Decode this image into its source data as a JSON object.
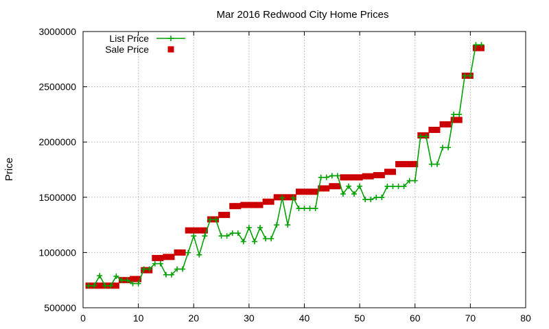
{
  "chart_data": {
    "type": "line",
    "title": "Mar 2016 Redwood City Home Prices",
    "xlabel": "",
    "ylabel": "Price",
    "xlim": [
      0,
      80
    ],
    "ylim": [
      500000,
      3000000
    ],
    "x_ticks": [
      0,
      10,
      20,
      30,
      40,
      50,
      60,
      70,
      80
    ],
    "y_ticks": [
      500000,
      1000000,
      1500000,
      2000000,
      2500000,
      3000000
    ],
    "x_tick_labels": [
      "0",
      "10",
      "20",
      "30",
      "40",
      "50",
      "60",
      "70",
      "80"
    ],
    "y_tick_labels": [
      "500000",
      "1000000",
      "1500000",
      "2000000",
      "2500000",
      "3000000"
    ],
    "grid": true,
    "legend_position": "top-left",
    "x": [
      1,
      2,
      3,
      4,
      5,
      6,
      7,
      8,
      9,
      10,
      11,
      12,
      13,
      14,
      15,
      16,
      17,
      18,
      19,
      20,
      21,
      22,
      23,
      24,
      25,
      26,
      27,
      28,
      29,
      30,
      31,
      32,
      33,
      34,
      35,
      36,
      37,
      38,
      39,
      40,
      41,
      42,
      43,
      44,
      45,
      46,
      47,
      48,
      49,
      50,
      51,
      52,
      53,
      54,
      55,
      56,
      57,
      58,
      59,
      60,
      61,
      62,
      63,
      64,
      65,
      66,
      67,
      68,
      69,
      70,
      71,
      72
    ],
    "series": [
      {
        "name": "List Price",
        "color": "#00a000",
        "marker": "plus",
        "values": [
          699000,
          699000,
          790000,
          699000,
          699000,
          785000,
          749000,
          749000,
          719000,
          719000,
          850000,
          850000,
          899000,
          899000,
          799000,
          799000,
          850000,
          850000,
          999000,
          1150000,
          979000,
          1150000,
          1298000,
          1298000,
          1150000,
          1150000,
          1175000,
          1175000,
          1099000,
          1225000,
          1099000,
          1225000,
          1125000,
          1125000,
          1250000,
          1495000,
          1250000,
          1495000,
          1399000,
          1399000,
          1399000,
          1399000,
          1680000,
          1680000,
          1695000,
          1695000,
          1530000,
          1600000,
          1530000,
          1600000,
          1480000,
          1480000,
          1499000,
          1499000,
          1599000,
          1599000,
          1599000,
          1599000,
          1650000,
          1650000,
          2050000,
          2050000,
          1799000,
          1799000,
          1950000,
          1950000,
          2250000,
          2250000,
          2600000,
          2600000,
          2880000,
          2880000
        ]
      },
      {
        "name": "Sale Price",
        "color": "#cc0000",
        "marker": "square",
        "values": [
          700000,
          700000,
          700000,
          700000,
          700000,
          700000,
          750000,
          750000,
          760000,
          760000,
          840000,
          840000,
          950000,
          950000,
          960000,
          960000,
          1000000,
          1000000,
          1200000,
          1200000,
          1200000,
          1200000,
          1300000,
          1300000,
          1340000,
          1340000,
          1420000,
          1420000,
          1430000,
          1430000,
          1430000,
          1430000,
          1460000,
          1460000,
          1500000,
          1500000,
          1500000,
          1500000,
          1550000,
          1550000,
          1550000,
          1550000,
          1580000,
          1580000,
          1600000,
          1600000,
          1680000,
          1680000,
          1680000,
          1680000,
          1690000,
          1690000,
          1700000,
          1700000,
          1730000,
          1730000,
          1800000,
          1800000,
          1800000,
          1800000,
          2060000,
          2060000,
          2110000,
          2110000,
          2160000,
          2160000,
          2200000,
          2200000,
          2600000,
          2600000,
          2850000,
          2850000
        ]
      }
    ]
  }
}
